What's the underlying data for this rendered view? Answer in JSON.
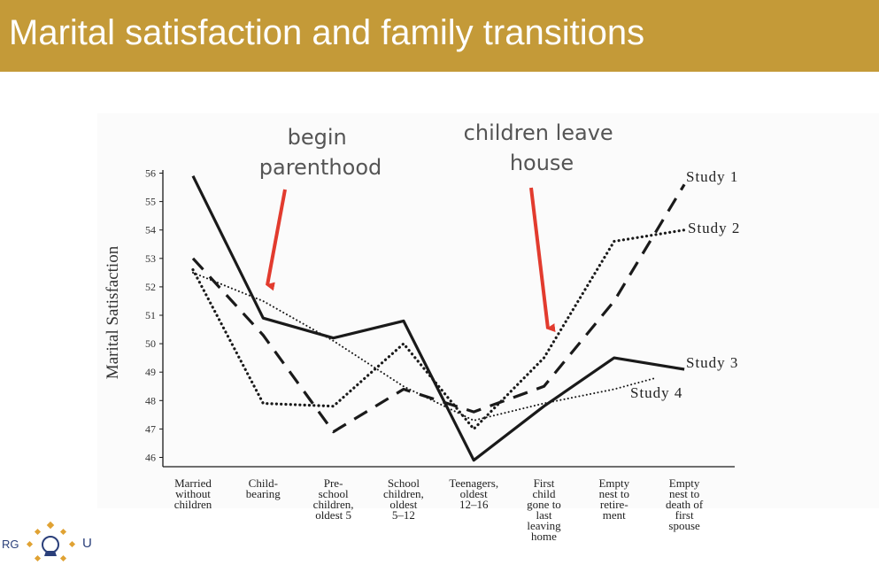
{
  "slide": {
    "title": "Marital satisfaction and family transitions"
  },
  "annotations": {
    "parenthood": [
      "begin",
      "parenthood"
    ],
    "leave": [
      "children leave",
      "house"
    ]
  },
  "logo": {
    "left_text": "RG",
    "right_text": "U"
  },
  "colors": {
    "title_bar": "#c49a38",
    "arrow": "#e23b2e",
    "lines": "#1a1a1a"
  },
  "chart_data": {
    "type": "line",
    "ylabel": "Marital Satisfaction",
    "ylim": [
      46,
      56
    ],
    "yticks": [
      46,
      47,
      48,
      49,
      50,
      51,
      52,
      53,
      54,
      55,
      56
    ],
    "grid": false,
    "categories": [
      [
        "Married",
        "without",
        "children"
      ],
      [
        "Child-",
        "bearing"
      ],
      [
        "Pre-",
        "school",
        "children,",
        "oldest 5"
      ],
      [
        "School",
        "children,",
        "oldest",
        "5–12"
      ],
      [
        "Teenagers,",
        "oldest",
        "12–16"
      ],
      [
        "First",
        "child",
        "gone to",
        "last",
        "leaving",
        "home"
      ],
      [
        "Empty",
        "nest to",
        "retire-",
        "ment"
      ],
      [
        "Empty",
        "nest to",
        "death of",
        "first",
        "spouse"
      ]
    ],
    "series": [
      {
        "name": "Study 1",
        "style": "dashed",
        "values": [
          53.0,
          50.3,
          46.9,
          48.4,
          47.6,
          48.5,
          51.5,
          55.6
        ]
      },
      {
        "name": "Study 2",
        "style": "dotted",
        "values": [
          52.6,
          47.9,
          47.8,
          50.0,
          47.0,
          49.5,
          53.6,
          54.0
        ]
      },
      {
        "name": "Study 3",
        "style": "solid",
        "values": [
          55.9,
          50.9,
          50.2,
          50.8,
          45.9,
          47.8,
          49.5,
          49.1
        ]
      },
      {
        "name": "Study 4",
        "style": "fine-dotted",
        "x": [
          0,
          1,
          2,
          3,
          4,
          5,
          6,
          6.6
        ],
        "values": [
          52.5,
          51.5,
          50.1,
          48.5,
          47.3,
          47.9,
          48.4,
          48.8
        ]
      }
    ]
  }
}
